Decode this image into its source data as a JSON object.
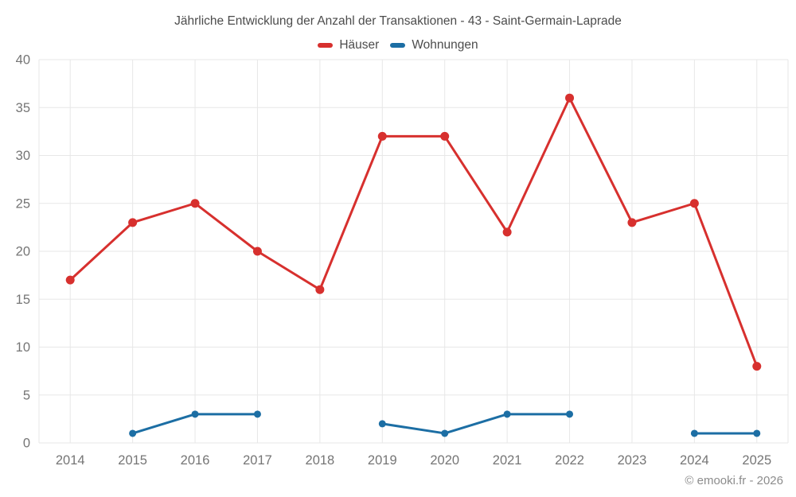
{
  "chart_data": {
    "type": "line",
    "title": "Jährliche Entwicklung der Anzahl der Transaktionen - 43 - Saint-Germain-Laprade",
    "categories": [
      "2014",
      "2015",
      "2016",
      "2017",
      "2018",
      "2019",
      "2020",
      "2021",
      "2022",
      "2023",
      "2024",
      "2025"
    ],
    "series": [
      {
        "name": "Häuser",
        "color": "#d7302e",
        "values": [
          17,
          23,
          25,
          20,
          16,
          32,
          32,
          22,
          36,
          23,
          25,
          8
        ]
      },
      {
        "name": "Wohnungen",
        "color": "#1c6ea4",
        "values": [
          null,
          1,
          3,
          3,
          null,
          2,
          1,
          3,
          3,
          null,
          1,
          1
        ]
      }
    ],
    "xlabel": "",
    "ylabel": "",
    "ylim": [
      0,
      40
    ],
    "yticks": [
      0,
      5,
      10,
      15,
      20,
      25,
      30,
      35,
      40
    ],
    "grid": true,
    "legend_position": "top",
    "grid_color": "#e7e7e7",
    "tick_color": "#757575"
  },
  "footer": {
    "copyright": "© emooki.fr - 2026"
  }
}
